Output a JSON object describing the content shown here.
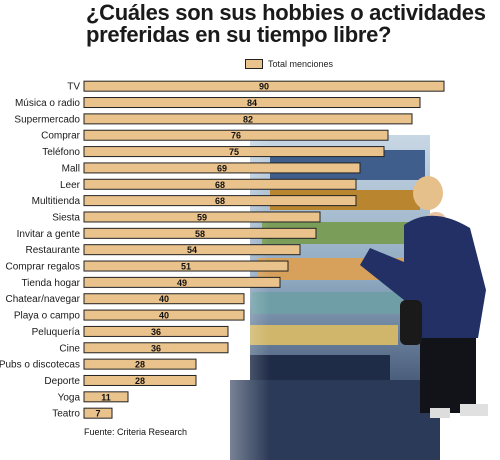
{
  "title": "¿Cuáles son sus hobbies o actividades preferidas en su tiempo libre?",
  "source": "Fuente: Criteria Research",
  "colors": {
    "bar_fill": "#e9c28c",
    "bar_stroke": "#222222",
    "text": "#1a1a1a"
  },
  "chart_data": {
    "type": "bar",
    "orientation": "horizontal",
    "title": "¿Cuáles son sus hobbies o actividades preferidas en su tiempo libre?",
    "categories": [
      "TV",
      "Música o radio",
      "Supermercado",
      "Comprar",
      "Teléfono",
      "Mall",
      "Leer",
      "Multitienda",
      "Siesta",
      "Invitar a gente",
      "Restaurante",
      "Comprar regalos",
      "Tienda hogar",
      "Chatear/navegar",
      "Playa o campo",
      "Peluquería",
      "Cine",
      "Pubs o discotecas",
      "Deporte",
      "Yoga",
      "Teatro"
    ],
    "series": [
      {
        "name": "Total menciones",
        "values": [
          90,
          84,
          82,
          76,
          75,
          69,
          68,
          68,
          59,
          58,
          54,
          51,
          49,
          40,
          40,
          36,
          36,
          28,
          28,
          11,
          7
        ]
      }
    ],
    "legend": "top",
    "grid": false,
    "xlim": [
      0,
      90
    ]
  }
}
